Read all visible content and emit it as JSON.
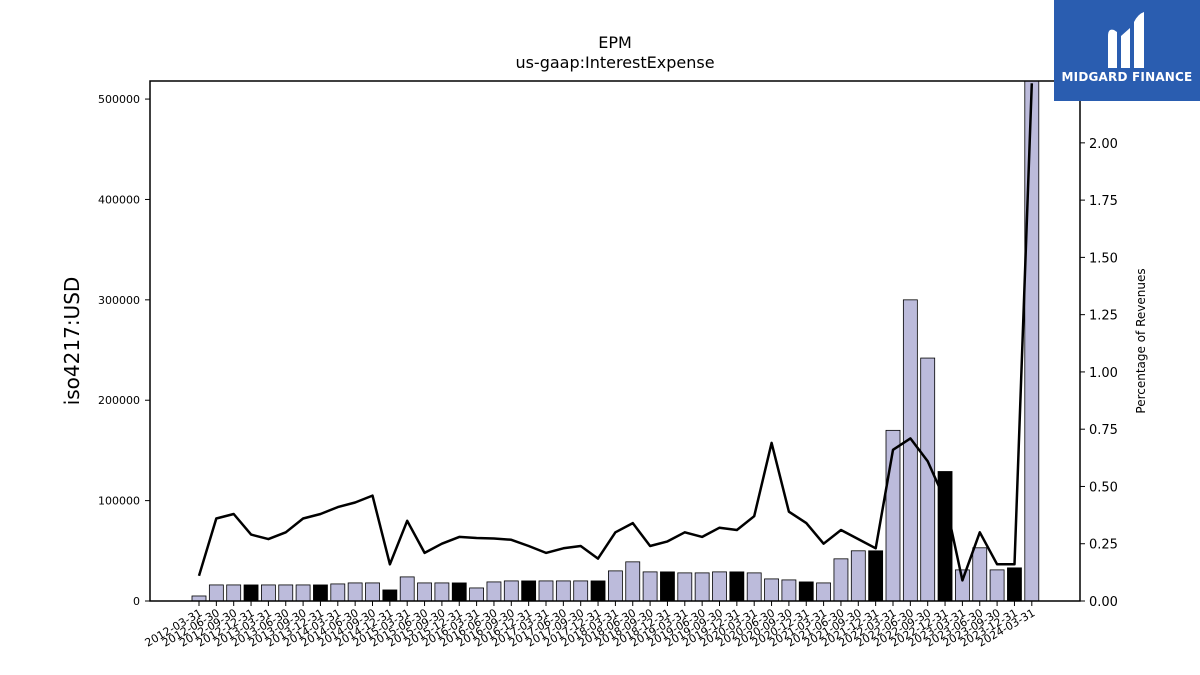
{
  "chart_data": {
    "type": "bar",
    "title": "EPM",
    "subtitle": "us-gaap:InterestExpense",
    "ylabel": "iso4217:USD",
    "y2label": "Percentage of Revenues",
    "ylim": [
      0,
      518000
    ],
    "y2lim": [
      0,
      2.27
    ],
    "yticks": [
      0,
      100000,
      200000,
      300000,
      400000,
      500000
    ],
    "y2ticks": [
      "0.00",
      "0.25",
      "0.50",
      "0.75",
      "1.00",
      "1.25",
      "1.50",
      "1.75",
      "2.00"
    ],
    "categories": [
      "2012-03-31",
      "2012-06-30",
      "2012-09-30",
      "2012-12-31",
      "2013-03-31",
      "2013-06-30",
      "2013-09-30",
      "2013-12-31",
      "2014-03-31",
      "2014-06-30",
      "2014-09-30",
      "2014-12-31",
      "2015-03-31",
      "2015-06-30",
      "2015-09-30",
      "2015-12-31",
      "2016-03-31",
      "2016-06-30",
      "2016-09-30",
      "2016-12-31",
      "2017-03-31",
      "2017-06-30",
      "2017-09-30",
      "2017-12-31",
      "2018-03-31",
      "2018-06-30",
      "2018-09-30",
      "2018-12-31",
      "2019-03-31",
      "2019-06-30",
      "2019-09-30",
      "2019-12-31",
      "2020-03-31",
      "2020-06-30",
      "2020-09-30",
      "2020-12-31",
      "2021-03-31",
      "2021-06-30",
      "2021-09-30",
      "2021-12-31",
      "2022-03-31",
      "2022-06-30",
      "2022-09-30",
      "2022-12-31",
      "2023-03-31",
      "2023-06-30",
      "2023-09-30",
      "2023-12-31",
      "2024-03-31"
    ],
    "values": [
      5000,
      16000,
      16000,
      16000,
      16000,
      16000,
      16000,
      16000,
      17000,
      18000,
      18000,
      11000,
      24000,
      18000,
      18000,
      18000,
      13000,
      19000,
      20000,
      20000,
      20000,
      20000,
      20000,
      20000,
      30000,
      39000,
      29000,
      29000,
      28000,
      28000,
      29000,
      29000,
      28000,
      22000,
      21000,
      19000,
      18000,
      42000,
      50000,
      50000,
      170000,
      300000,
      242000,
      129000,
      31000,
      53000,
      31000,
      33000,
      518000
    ],
    "bar_colors": [
      "#bcbbdb",
      "#bcbbdb",
      "#bcbbdb",
      "#000000",
      "#bcbbdb",
      "#bcbbdb",
      "#bcbbdb",
      "#000000",
      "#bcbbdb",
      "#bcbbdb",
      "#bcbbdb",
      "#000000",
      "#bcbbdb",
      "#bcbbdb",
      "#bcbbdb",
      "#000000",
      "#bcbbdb",
      "#bcbbdb",
      "#bcbbdb",
      "#000000",
      "#bcbbdb",
      "#bcbbdb",
      "#bcbbdb",
      "#000000",
      "#bcbbdb",
      "#bcbbdb",
      "#bcbbdb",
      "#000000",
      "#bcbbdb",
      "#bcbbdb",
      "#bcbbdb",
      "#000000",
      "#bcbbdb",
      "#bcbbdb",
      "#bcbbdb",
      "#000000",
      "#bcbbdb",
      "#bcbbdb",
      "#bcbbdb",
      "#000000",
      "#bcbbdb",
      "#bcbbdb",
      "#bcbbdb",
      "#000000",
      "#bcbbdb",
      "#bcbbdb",
      "#bcbbdb",
      "#000000",
      "#bcbbdb"
    ],
    "pct_of_revenues": [
      0.11,
      0.36,
      0.38,
      0.29,
      0.27,
      0.3,
      0.36,
      0.38,
      0.41,
      0.43,
      0.46,
      0.16,
      0.35,
      0.21,
      0.25,
      0.28,
      0.275,
      0.273,
      0.267,
      0.24,
      0.21,
      0.23,
      0.24,
      0.185,
      0.3,
      0.34,
      0.24,
      0.26,
      0.3,
      0.28,
      0.32,
      0.31,
      0.37,
      0.69,
      0.39,
      0.34,
      0.25,
      0.31,
      0.27,
      0.23,
      0.66,
      0.71,
      0.61,
      0.44,
      0.09,
      0.3,
      0.16,
      0.16,
      2.26
    ],
    "grid": false,
    "legend": "none"
  },
  "logo": {
    "text": "MIDGARD FINANCE",
    "bg": "#2a5db0"
  }
}
